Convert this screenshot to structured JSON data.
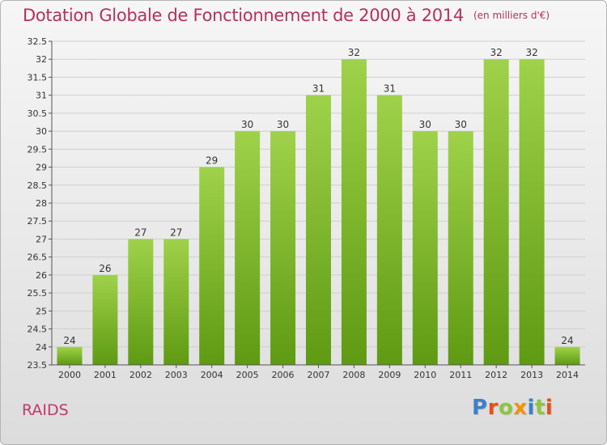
{
  "header": {
    "title": "Dotation Globale de Fonctionnement de 2000 à 2014",
    "unit": "(en milliers d'€)"
  },
  "footer": {
    "commune": "RAIDS",
    "logo": "Proxiti"
  },
  "colors": {
    "title": "#b5305e",
    "bar_top": "#9fd24a",
    "bar_bottom": "#5e9a12",
    "grid": "#cfcfcf",
    "logo_letters": [
      "#3d7fc9",
      "#e94e1b",
      "#8dc63f",
      "#f29400",
      "#3d7fc9",
      "#8dc63f",
      "#e94e1b"
    ]
  },
  "chart_data": {
    "type": "bar",
    "title": "Dotation Globale de Fonctionnement de 2000 à 2014",
    "subtitle": "(en milliers d'€)",
    "categories": [
      "2000",
      "2001",
      "2002",
      "2003",
      "2004",
      "2005",
      "2006",
      "2007",
      "2008",
      "2009",
      "2010",
      "2011",
      "2012",
      "2013",
      "2014"
    ],
    "values": [
      24,
      26,
      27,
      27,
      29,
      30,
      30,
      31,
      32,
      31,
      30,
      30,
      32,
      32,
      24
    ],
    "ylim": [
      23.5,
      32.5
    ],
    "yticks": [
      "23.5",
      "24",
      "24.5",
      "25",
      "25.5",
      "26",
      "26.5",
      "27",
      "27.5",
      "28",
      "28.5",
      "29",
      "29.5",
      "30",
      "30.5",
      "31",
      "31.5",
      "32",
      "32.5"
    ],
    "grid": true,
    "legend": "none"
  }
}
